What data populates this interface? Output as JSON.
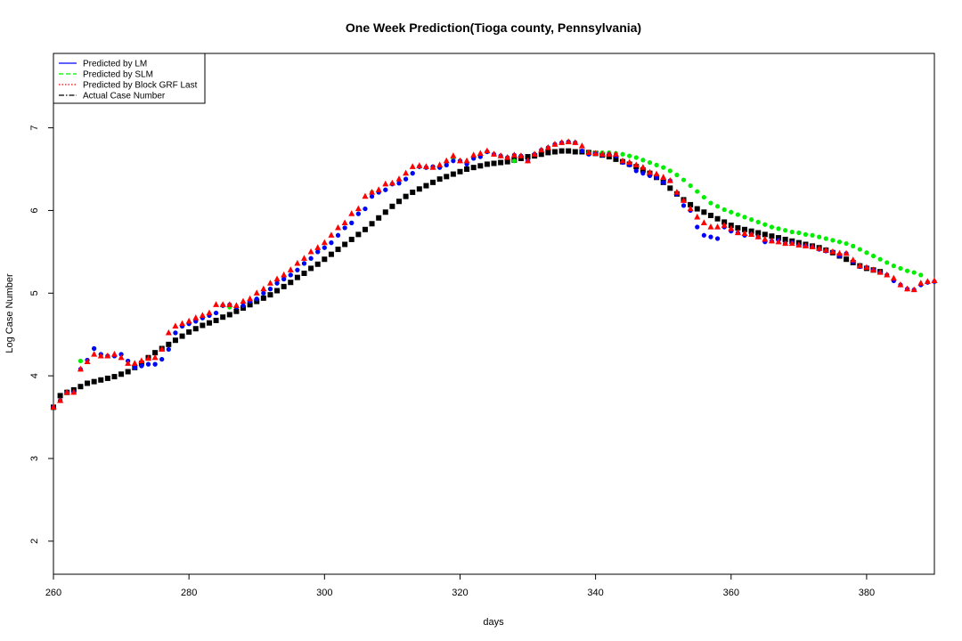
{
  "chart_data": {
    "type": "scatter",
    "title": "One Week Prediction(Tioga county, Pennsylvania)",
    "xlabel": "days",
    "ylabel": "Log Case Number",
    "xlim": [
      260,
      390
    ],
    "ylim": [
      1.6,
      7.9
    ],
    "xticks": [
      260,
      280,
      300,
      320,
      340,
      360,
      380
    ],
    "yticks": [
      2,
      3,
      4,
      5,
      6,
      7
    ],
    "grid": false,
    "legend_position": "top-left",
    "legend": [
      {
        "label": "Predicted by LM",
        "color": "#0000ff",
        "line": "solid"
      },
      {
        "label": "Predicted by SLM",
        "color": "#00ee00",
        "line": "dashed"
      },
      {
        "label": "Predicted by Block GRF Last",
        "color": "#ff0000",
        "line": "dotted"
      },
      {
        "label": "Actual Case Number",
        "color": "#000000",
        "line": "dashdot"
      }
    ],
    "x_start": 260,
    "series": [
      {
        "name": "Actual Case Number",
        "color": "#000000",
        "marker": "square",
        "y": [
          3.62,
          3.76,
          3.8,
          3.83,
          3.87,
          3.91,
          3.93,
          3.95,
          3.97,
          3.99,
          4.02,
          4.05,
          4.1,
          4.15,
          4.22,
          4.28,
          4.33,
          4.38,
          4.43,
          4.48,
          4.53,
          4.57,
          4.61,
          4.64,
          4.67,
          4.71,
          4.74,
          4.78,
          4.82,
          4.86,
          4.9,
          4.94,
          4.98,
          5.03,
          5.08,
          5.13,
          5.19,
          5.24,
          5.3,
          5.35,
          5.41,
          5.47,
          5.53,
          5.59,
          5.65,
          5.71,
          5.77,
          5.84,
          5.91,
          5.98,
          6.05,
          6.11,
          6.17,
          6.22,
          6.26,
          6.3,
          6.34,
          6.38,
          6.41,
          6.44,
          6.47,
          6.5,
          6.52,
          6.54,
          6.56,
          6.57,
          6.58,
          6.59,
          6.61,
          6.63,
          6.65,
          6.66,
          6.68,
          6.7,
          6.71,
          6.72,
          6.72,
          6.71,
          6.71,
          6.7,
          6.69,
          6.67,
          6.65,
          6.62,
          6.59,
          6.56,
          6.53,
          6.49,
          6.45,
          6.4,
          6.34,
          6.27,
          6.2,
          6.13,
          6.07,
          6.02,
          5.98,
          5.94,
          5.9,
          5.86,
          5.82,
          5.79,
          5.77,
          5.75,
          5.73,
          5.71,
          5.69,
          5.67,
          5.65,
          5.63,
          5.61,
          5.59,
          5.57,
          5.55,
          5.52,
          5.49,
          5.45,
          5.41,
          5.37,
          5.33,
          5.3,
          5.28,
          5.26
        ]
      },
      {
        "name": "Predicted by LM",
        "color": "#0000ff",
        "marker": "circle",
        "y": [
          3.62,
          3.7,
          3.8,
          3.8,
          4.08,
          4.19,
          4.33,
          4.26,
          4.24,
          4.24,
          4.26,
          4.18,
          4.1,
          4.12,
          4.14,
          4.14,
          4.2,
          4.32,
          4.52,
          4.6,
          4.63,
          4.66,
          4.7,
          4.73,
          4.76,
          4.85,
          4.86,
          4.83,
          4.85,
          4.9,
          4.93,
          5.0,
          5.05,
          5.12,
          5.17,
          5.22,
          5.28,
          5.36,
          5.42,
          5.5,
          5.55,
          5.61,
          5.7,
          5.79,
          5.85,
          5.96,
          6.02,
          6.17,
          6.22,
          6.25,
          6.32,
          6.33,
          6.38,
          6.45,
          6.53,
          6.52,
          6.53,
          6.52,
          6.55,
          6.6,
          6.6,
          6.56,
          6.63,
          6.65,
          6.71,
          6.68,
          6.66,
          6.64,
          6.67,
          6.66,
          6.6,
          6.68,
          6.73,
          6.76,
          6.8,
          6.82,
          6.83,
          6.82,
          6.72,
          6.68,
          6.69,
          6.67,
          6.68,
          6.66,
          6.58,
          6.55,
          6.48,
          6.45,
          6.42,
          6.4,
          6.34,
          6.36,
          6.2,
          6.06,
          6.0,
          5.8,
          5.7,
          5.68,
          5.66,
          5.8,
          5.75,
          5.73,
          5.7,
          5.71,
          5.68,
          5.62,
          5.63,
          5.64,
          5.6,
          5.61,
          5.58,
          5.57,
          5.56,
          5.53,
          5.51,
          5.5,
          5.45,
          5.48,
          5.38,
          5.32,
          5.31,
          5.28,
          5.25,
          5.22,
          5.15,
          5.1,
          5.05,
          5.04,
          5.1,
          5.13,
          5.14,
          5.16
        ]
      },
      {
        "name": "Predicted by SLM",
        "color": "#00ee00",
        "marker": "circle",
        "y": [
          3.62,
          3.7,
          3.8,
          3.8,
          4.18,
          4.19,
          4.33,
          4.26,
          4.24,
          4.24,
          4.26,
          4.18,
          4.1,
          4.12,
          4.14,
          4.14,
          4.2,
          4.32,
          4.52,
          4.6,
          4.63,
          4.66,
          4.7,
          4.73,
          4.76,
          4.85,
          4.83,
          4.83,
          4.85,
          4.9,
          4.93,
          5.0,
          5.05,
          5.12,
          5.17,
          5.22,
          5.28,
          5.36,
          5.42,
          5.5,
          5.55,
          5.61,
          5.7,
          5.79,
          5.85,
          5.96,
          6.02,
          6.22,
          6.22,
          6.25,
          6.32,
          6.33,
          6.38,
          6.45,
          6.53,
          6.52,
          6.53,
          6.52,
          6.55,
          6.63,
          6.6,
          6.56,
          6.63,
          6.65,
          6.71,
          6.68,
          6.66,
          6.64,
          6.6,
          6.66,
          6.6,
          6.68,
          6.73,
          6.76,
          6.8,
          6.82,
          6.83,
          6.82,
          6.72,
          6.7,
          6.7,
          6.7,
          6.7,
          6.69,
          6.68,
          6.66,
          6.64,
          6.61,
          6.58,
          6.55,
          6.52,
          6.48,
          6.43,
          6.37,
          6.3,
          6.23,
          6.16,
          6.09,
          6.05,
          6.01,
          5.98,
          5.95,
          5.92,
          5.89,
          5.86,
          5.83,
          5.8,
          5.78,
          5.76,
          5.74,
          5.73,
          5.71,
          5.7,
          5.68,
          5.66,
          5.64,
          5.62,
          5.6,
          5.57,
          5.53,
          5.49,
          5.45,
          5.41,
          5.37,
          5.33,
          5.3,
          5.27,
          5.25,
          5.22
        ]
      },
      {
        "name": "Predicted by Block GRF Last",
        "color": "#ff0000",
        "marker": "triangle",
        "y": [
          3.62,
          3.7,
          3.8,
          3.8,
          4.08,
          4.17,
          4.26,
          4.24,
          4.24,
          4.26,
          4.22,
          4.15,
          4.15,
          4.18,
          4.21,
          4.22,
          4.32,
          4.52,
          4.6,
          4.63,
          4.66,
          4.7,
          4.73,
          4.76,
          4.86,
          4.86,
          4.86,
          4.85,
          4.9,
          4.93,
          5.0,
          5.05,
          5.12,
          5.17,
          5.22,
          5.28,
          5.36,
          5.42,
          5.5,
          5.55,
          5.61,
          5.7,
          5.79,
          5.85,
          5.96,
          6.02,
          6.17,
          6.22,
          6.25,
          6.32,
          6.33,
          6.38,
          6.45,
          6.53,
          6.54,
          6.53,
          6.52,
          6.55,
          6.6,
          6.66,
          6.6,
          6.6,
          6.67,
          6.69,
          6.72,
          6.68,
          6.66,
          6.64,
          6.67,
          6.66,
          6.6,
          6.68,
          6.73,
          6.76,
          6.8,
          6.82,
          6.83,
          6.82,
          6.78,
          6.7,
          6.69,
          6.68,
          6.68,
          6.68,
          6.6,
          6.58,
          6.55,
          6.52,
          6.46,
          6.44,
          6.4,
          6.36,
          6.22,
          6.12,
          6.02,
          5.92,
          5.85,
          5.8,
          5.8,
          5.82,
          5.78,
          5.73,
          5.72,
          5.71,
          5.68,
          5.65,
          5.63,
          5.62,
          5.6,
          5.6,
          5.58,
          5.57,
          5.56,
          5.54,
          5.52,
          5.5,
          5.48,
          5.48,
          5.4,
          5.33,
          5.31,
          5.28,
          5.25,
          5.22,
          5.18,
          5.1,
          5.05,
          5.04,
          5.12,
          5.14,
          5.15,
          5.16
        ]
      }
    ]
  }
}
